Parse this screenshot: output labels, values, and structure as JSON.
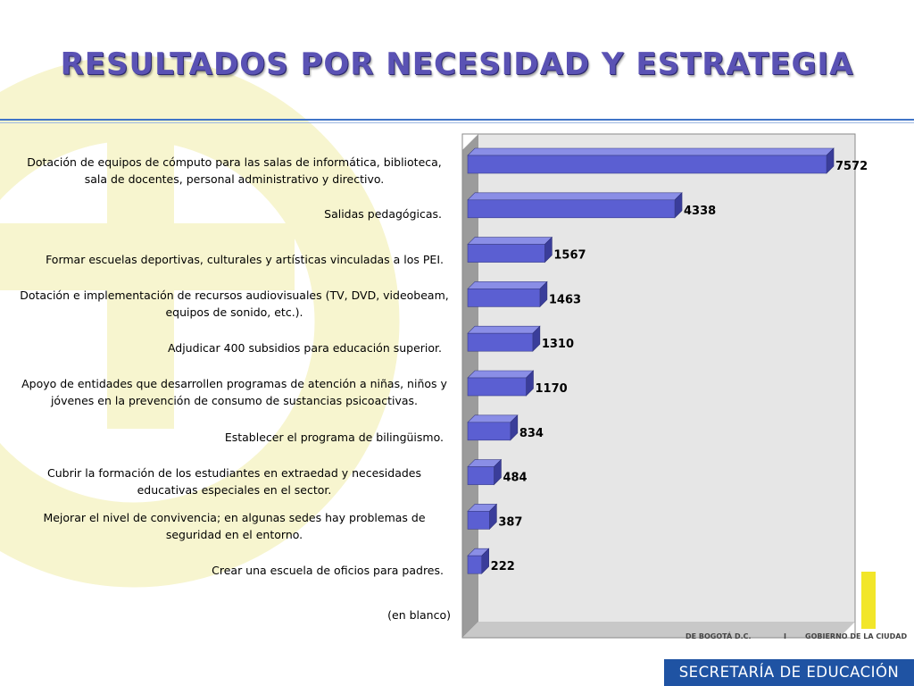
{
  "page": {
    "title": "RESULTADOS POR NECESIDAD Y ESTRATEGIA",
    "footer_label": "SECRETARÍA DE EDUCACIÓN",
    "logo_text_left": "DE BOGOTÁ D.C.",
    "logo_text_mid": "I",
    "logo_text_right": "GOBIERNO DE LA CIUDAD"
  },
  "colors": {
    "title": "#5a52b4",
    "bar_front": "#5b5fd2",
    "bar_top": "#8a8ee6",
    "bar_side": "#3a3d9a",
    "plot_back": "#e6e6e6",
    "plot_wall": "#9b9b9b",
    "deco_yellow": "#f7f5cf",
    "footer_bg": "#1f53a3"
  },
  "chart_data": {
    "type": "bar",
    "orientation": "horizontal",
    "style": "3d",
    "categories": [
      "Dotación de equipos de cómputo para las salas de informática, biblioteca, sala de docentes, personal administrativo y directivo.",
      "Salidas pedagógicas.",
      "Formar escuelas deportivas, culturales y artísticas vinculadas a los PEI.",
      "Dotación e implementación de recursos audiovisuales (TV, DVD, videobeam, equipos de sonido, etc.).",
      "Adjudicar 400 subsidios para educación superior.",
      "Apoyo de entidades que desarrollen programas de atención a niñas, niños y jóvenes en la prevención de  consumo de sustancias psicoactivas.",
      "Establecer el programa de bilingüismo.",
      "Cubrir la formación de los estudiantes en extraedad y necesidades educativas especiales en el sector.",
      "Mejorar el nivel de convivencia; en algunas sedes hay problemas de seguridad en el entorno.",
      "Crear una escuela de oficios para padres.",
      "(en blanco)"
    ],
    "values": [
      7572,
      4338,
      1567,
      1463,
      1310,
      1170,
      834,
      484,
      387,
      222,
      null
    ],
    "data_labels": [
      "7572",
      "4338",
      "1567",
      "1463",
      "1310",
      "1170",
      "834",
      "484",
      "387",
      "222",
      ""
    ],
    "xlim": [
      0,
      7800
    ],
    "grid": false,
    "legend": "none"
  }
}
